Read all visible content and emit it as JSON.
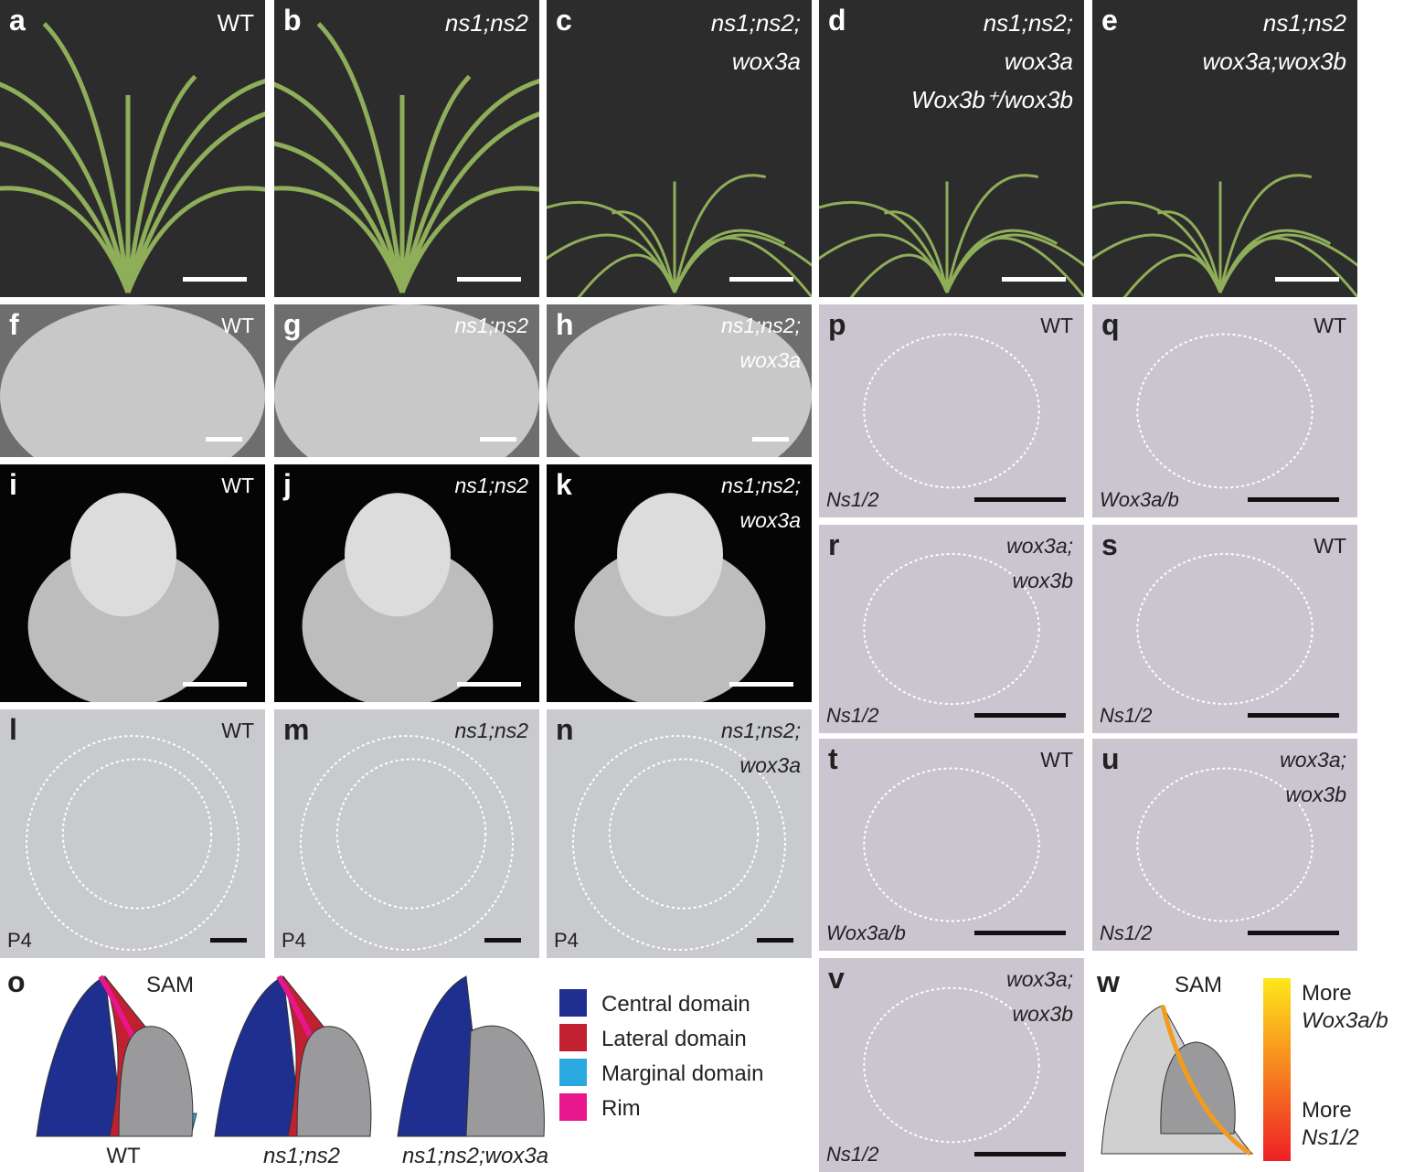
{
  "panels": [
    {
      "letter": "a",
      "labels": [
        "WT"
      ]
    },
    {
      "letter": "b",
      "labels": [
        "ns1;ns2"
      ]
    },
    {
      "letter": "c",
      "labels": [
        "ns1;ns2;",
        "wox3a"
      ]
    },
    {
      "letter": "d",
      "labels": [
        "ns1;ns2;",
        "wox3a",
        "Wox3b⁺/wox3b"
      ]
    },
    {
      "letter": "e",
      "labels": [
        "ns1;ns2",
        "wox3a;wox3b"
      ]
    },
    {
      "letter": "f",
      "labels": [
        "WT"
      ]
    },
    {
      "letter": "g",
      "labels": [
        "ns1;ns2"
      ]
    },
    {
      "letter": "h",
      "labels": [
        "ns1;ns2;",
        "wox3a"
      ]
    },
    {
      "letter": "i",
      "labels": [
        "WT"
      ]
    },
    {
      "letter": "j",
      "labels": [
        "ns1;ns2"
      ]
    },
    {
      "letter": "k",
      "labels": [
        "ns1;ns2;",
        "wox3a"
      ]
    },
    {
      "letter": "l",
      "labels": [
        "WT"
      ],
      "footer": "P4"
    },
    {
      "letter": "m",
      "labels": [
        "ns1;ns2"
      ],
      "footer": "P4"
    },
    {
      "letter": "n",
      "labels": [
        "ns1;ns2;",
        "wox3a"
      ],
      "footer": "P4"
    },
    {
      "letter": "p",
      "labels": [
        "WT"
      ],
      "footer": "Ns1/2"
    },
    {
      "letter": "q",
      "labels": [
        "WT"
      ],
      "footer": "Wox3a/b"
    },
    {
      "letter": "r",
      "labels": [
        "wox3a;",
        "wox3b"
      ],
      "footer": "Ns1/2"
    },
    {
      "letter": "s",
      "labels": [
        "WT"
      ],
      "footer": "Ns1/2"
    },
    {
      "letter": "t",
      "labels": [
        "WT"
      ],
      "footer": "Wox3a/b"
    },
    {
      "letter": "u",
      "labels": [
        "wox3a;",
        "wox3b"
      ],
      "footer": "Ns1/2"
    },
    {
      "letter": "v",
      "labels": [
        "wox3a;",
        "wox3b"
      ],
      "footer": "Ns1/2"
    }
  ],
  "schematic_o": {
    "letter": "o",
    "sam": "SAM",
    "genotypes": [
      "WT",
      "ns1;ns2",
      "ns1;ns2;wox3a"
    ],
    "legend": [
      {
        "name": "Central domain",
        "color": "#1f2f8f"
      },
      {
        "name": "Lateral domain",
        "color": "#c0202f"
      },
      {
        "name": "Marginal domain",
        "color": "#2aa9e0"
      },
      {
        "name": "Rim",
        "color": "#e8168c"
      }
    ]
  },
  "schematic_w": {
    "letter": "w",
    "sam": "SAM",
    "top": [
      "More",
      "Wox3a/b"
    ],
    "bottom": [
      "More",
      "Ns1/2"
    ]
  }
}
